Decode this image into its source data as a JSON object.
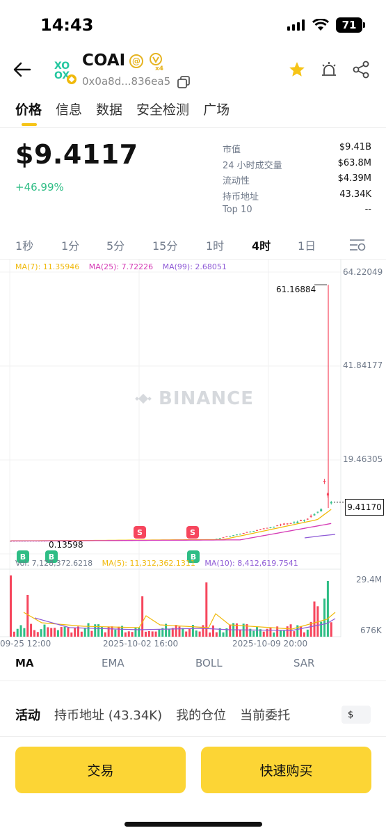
{
  "status_bar": {
    "time": "14:43",
    "battery": "71"
  },
  "header": {
    "token_name": "COAI",
    "badge_at": "@",
    "badge_multiplier": "x4",
    "address": "0x0a8d...836ea5"
  },
  "tabs": [
    "价格",
    "信息",
    "数据",
    "安全检测",
    "广场"
  ],
  "price": {
    "value": "$9.4117",
    "change": "+46.99%",
    "stats": [
      {
        "label": "市值",
        "value": "$9.41B"
      },
      {
        "label": "24 小时成交量",
        "value": "$63.8M"
      },
      {
        "label": "流动性",
        "value": "$4.39M"
      },
      {
        "label": "持币地址",
        "value": "43.34K"
      },
      {
        "label": "Top 10",
        "value": "--"
      }
    ]
  },
  "timeframes": {
    "items": [
      "1秒",
      "1分",
      "5分",
      "15分",
      "1时",
      "4时",
      "1日"
    ],
    "selected": "4时"
  },
  "chart": {
    "ma_legend": {
      "ma7": "MA(7): 11.35946",
      "ma25": "MA(25): 7.72226",
      "ma99": "MA(99): 2.68051"
    },
    "y_axis": [
      "64.22049",
      "41.84177",
      "19.46305"
    ],
    "current_price": "9.41170",
    "high_label": "61.16884",
    "low_label": "0.13598",
    "watermark": "BINANCE",
    "volume_legend": {
      "vol": "Vol: 7,128,372.6218",
      "ma5": "MA(5): 11,312,362.1311",
      "ma10": "MA(10): 8,412,619.7541"
    },
    "volume_axis": [
      "29.4M",
      "676K"
    ],
    "x_axis": [
      "09-25 12:00",
      "2025-10-02 16:00",
      "2025-10-09 20:00"
    ],
    "trade_marks": {
      "sell": "S",
      "buy": "B"
    },
    "colors": {
      "up": "#2ebd85",
      "down": "#f6465d",
      "ma7": "#f0b90b",
      "ma25": "#d53ab5",
      "ma99": "#8e5ad6"
    }
  },
  "indicators": {
    "items": [
      "MA",
      "EMA",
      "BOLL",
      "SAR"
    ],
    "selected": "MA"
  },
  "bottom_tabs": {
    "items": [
      "活动",
      "持币地址 (43.34K)",
      "我的仓位",
      "当前委托"
    ],
    "selected": "活动",
    "currency": "$"
  },
  "buttons": {
    "trade": "交易",
    "quick_buy": "快速购买"
  }
}
